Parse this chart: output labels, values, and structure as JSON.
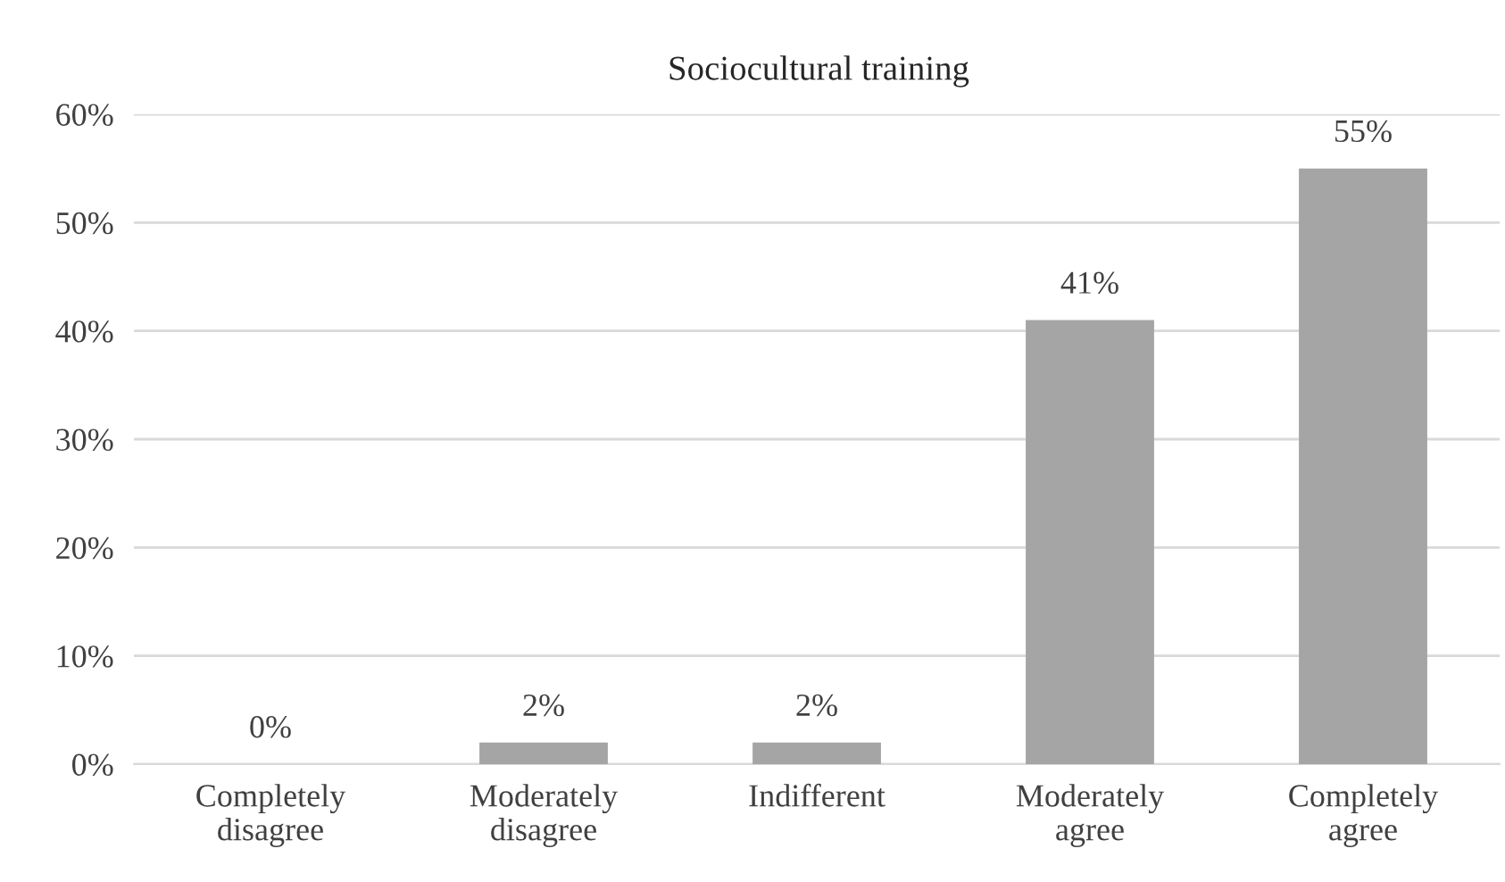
{
  "chart_data": {
    "type": "bar",
    "title": "Sociocultural training",
    "categories": [
      "Completely\ndisagree",
      "Moderately\ndisagree",
      "Indifferent",
      "Moderately\nagree",
      "Completely\nagree"
    ],
    "values": [
      0,
      2,
      2,
      41,
      55
    ],
    "color": "#a5a5a5",
    "value_labels": [
      "0%",
      "2%",
      "2%",
      "41%",
      "55%"
    ],
    "ylim": [
      0,
      60
    ],
    "yticks": [
      {
        "value": 0,
        "label": "0%"
      },
      {
        "value": 10,
        "label": "10%"
      },
      {
        "value": 20,
        "label": "20%"
      },
      {
        "value": 30,
        "label": "30%"
      },
      {
        "value": 40,
        "label": "40%"
      },
      {
        "value": 50,
        "label": "50%"
      },
      {
        "value": 60,
        "label": "60%"
      }
    ],
    "grid": "y",
    "legend": false
  }
}
